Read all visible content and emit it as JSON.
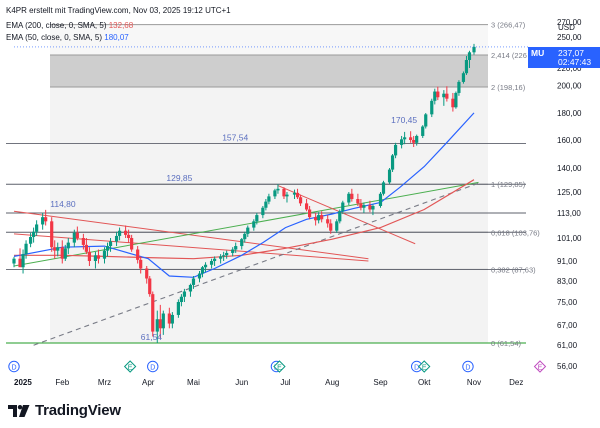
{
  "header": {
    "line1": "K4PR erstellt mit TradingView.com, Nov 03, 2025 19:12 UTC+1",
    "ema200_label": "EMA (200, close, 0, SMA, 5)",
    "ema200_value": "132,68",
    "ema50_label": "EMA (50, close, 0, SMA, 5)",
    "ema50_value": "180,07"
  },
  "price_tag": {
    "symbol": "MU",
    "price": "237,07",
    "countdown": "02:47:43"
  },
  "currency": "USD",
  "footer": {
    "logo_text": "TradingView"
  },
  "colors": {
    "candle_up": "#089981",
    "candle_down": "#f23645",
    "ema50": "#2962ff",
    "ema200": "#e25656",
    "accent": "#2962ff"
  },
  "chart_data": {
    "type": "candlestick",
    "ylim": [
      56,
      275
    ],
    "y_ticks": [
      "270,00",
      "250,00",
      "220,00",
      "200,00",
      "180,00",
      "160,00",
      "140,00",
      "125,00",
      "113,00",
      "101,00",
      "91,00",
      "83,00",
      "75,00",
      "67,00",
      "61,00",
      "56,00"
    ],
    "y_tick_values": [
      270,
      250,
      220,
      200,
      180,
      160,
      140,
      125,
      113,
      101,
      91,
      83,
      75,
      67,
      61,
      56
    ],
    "x_labels": [
      "2025",
      "Feb",
      "Mrz",
      "Apr",
      "Mai",
      "Jun",
      "Jul",
      "Aug",
      "Sep",
      "Okt",
      "Nov",
      "Dez"
    ],
    "x_label_dates": [
      "2025-01-02",
      "2025-02-03",
      "2025-03-03",
      "2025-04-01",
      "2025-05-01",
      "2025-06-02",
      "2025-07-01",
      "2025-08-01",
      "2025-09-02",
      "2025-10-01",
      "2025-11-03",
      "2025-12-01"
    ],
    "fib_levels": [
      {
        "label": "3 (266,47)",
        "value": 266.47
      },
      {
        "label": "2,414 (226",
        "value": 226.5
      },
      {
        "label": "2 (198,16)",
        "value": 198.16
      },
      {
        "label": "1 (129,85)",
        "value": 129.85
      },
      {
        "label": "0,618 (103,76)",
        "value": 103.76
      },
      {
        "label": "0,382 (87,63)",
        "value": 87.63
      },
      {
        "label": "0 (61,54)",
        "value": 61.54
      }
    ],
    "value_labels": [
      {
        "text": "157,54",
        "value": 157.54,
        "date": "2025-05-28"
      },
      {
        "text": "129,85",
        "value": 129.85,
        "date": "2025-04-21"
      },
      {
        "text": "114,80",
        "value": 114.8,
        "date": "2025-02-03"
      },
      {
        "text": "170,45",
        "value": 170.45,
        "date": "2025-09-17"
      },
      {
        "text": "61,54",
        "value": 61.54,
        "date": "2025-04-04"
      }
    ],
    "events": [
      {
        "label": "D",
        "kind": "dividend",
        "date": "2025-01-02"
      },
      {
        "label": "E",
        "kind": "earnings",
        "date": "2025-03-20"
      },
      {
        "label": "D",
        "kind": "dividend",
        "date": "2025-04-04"
      },
      {
        "label": "D",
        "kind": "dividend",
        "date": "2025-06-25"
      },
      {
        "label": "E",
        "kind": "earnings",
        "date": "2025-06-27"
      },
      {
        "label": "D",
        "kind": "dividend",
        "date": "2025-09-26"
      },
      {
        "label": "E",
        "kind": "earnings",
        "date": "2025-10-01"
      },
      {
        "label": "D",
        "kind": "dividend",
        "date": "2025-10-30"
      },
      {
        "label": "E",
        "kind": "earnings",
        "date": "2025-12-18"
      }
    ],
    "candles": [
      [
        "2025-01-02",
        90.0,
        92.8,
        88.5,
        92.0
      ],
      [
        "2025-01-06",
        92.0,
        96.5,
        89.0,
        88.5
      ],
      [
        "2025-01-08",
        88.5,
        96.0,
        86.0,
        94.0
      ],
      [
        "2025-01-10",
        94.0,
        100.0,
        92.0,
        98.5
      ],
      [
        "2025-01-13",
        98.5,
        103.5,
        97.0,
        101.5
      ],
      [
        "2025-01-15",
        101.5,
        106.0,
        99.0,
        104.0
      ],
      [
        "2025-01-17",
        104.0,
        109.5,
        102.0,
        107.5
      ],
      [
        "2025-01-21",
        107.5,
        113.0,
        105.0,
        111.0
      ],
      [
        "2025-01-23",
        111.0,
        114.8,
        107.0,
        109.0
      ],
      [
        "2025-01-27",
        109.0,
        111.0,
        95.0,
        97.0
      ],
      [
        "2025-01-29",
        97.0,
        100.0,
        92.0,
        95.5
      ],
      [
        "2025-01-31",
        95.5,
        99.0,
        93.0,
        97.0
      ],
      [
        "2025-02-03",
        97.0,
        100.0,
        90.0,
        92.0
      ],
      [
        "2025-02-05",
        92.0,
        98.0,
        91.0,
        96.5
      ],
      [
        "2025-02-07",
        96.5,
        101.0,
        94.0,
        99.0
      ],
      [
        "2025-02-11",
        99.0,
        105.0,
        97.0,
        103.5
      ],
      [
        "2025-02-13",
        103.5,
        106.5,
        100.0,
        101.0
      ],
      [
        "2025-02-17",
        101.0,
        103.0,
        96.0,
        98.0
      ],
      [
        "2025-02-19",
        98.0,
        101.0,
        94.0,
        95.0
      ],
      [
        "2025-02-21",
        95.0,
        97.0,
        89.0,
        91.0
      ],
      [
        "2025-02-25",
        91.0,
        95.0,
        88.0,
        93.5
      ],
      [
        "2025-02-27",
        93.5,
        96.0,
        90.0,
        92.0
      ],
      [
        "2025-03-03",
        92.0,
        97.0,
        90.0,
        95.5
      ],
      [
        "2025-03-05",
        95.5,
        99.0,
        93.0,
        97.5
      ],
      [
        "2025-03-07",
        97.5,
        101.0,
        95.0,
        99.5
      ],
      [
        "2025-03-11",
        99.5,
        104.0,
        97.5,
        102.0
      ],
      [
        "2025-03-13",
        102.0,
        106.0,
        100.0,
        104.5
      ],
      [
        "2025-03-17",
        104.5,
        107.0,
        101.0,
        102.5
      ],
      [
        "2025-03-19",
        102.5,
        105.0,
        99.0,
        101.0
      ],
      [
        "2025-03-21",
        101.0,
        102.5,
        95.0,
        96.0
      ],
      [
        "2025-03-25",
        96.0,
        97.5,
        90.0,
        91.5
      ],
      [
        "2025-03-27",
        91.5,
        93.0,
        86.0,
        88.0
      ],
      [
        "2025-03-31",
        88.0,
        89.0,
        82.0,
        84.0
      ],
      [
        "2025-04-02",
        84.0,
        85.0,
        77.0,
        78.0
      ],
      [
        "2025-04-04",
        78.0,
        79.0,
        63.5,
        65.0
      ],
      [
        "2025-04-07",
        65.0,
        72.0,
        61.54,
        69.0
      ],
      [
        "2025-04-09",
        69.0,
        74.0,
        63.0,
        66.0
      ],
      [
        "2025-04-11",
        66.0,
        72.0,
        64.0,
        71.0
      ],
      [
        "2025-04-15",
        71.0,
        73.0,
        66.0,
        67.5
      ],
      [
        "2025-04-17",
        67.5,
        71.5,
        66.0,
        70.5
      ],
      [
        "2025-04-21",
        70.5,
        76.0,
        69.5,
        75.0
      ],
      [
        "2025-04-23",
        75.0,
        78.0,
        73.5,
        77.0
      ],
      [
        "2025-04-25",
        77.0,
        80.0,
        75.0,
        79.0
      ],
      [
        "2025-04-29",
        79.0,
        82.0,
        77.0,
        81.5
      ],
      [
        "2025-05-01",
        81.5,
        85.0,
        80.0,
        84.0
      ],
      [
        "2025-05-05",
        84.0,
        87.0,
        82.5,
        86.0
      ],
      [
        "2025-05-07",
        86.0,
        89.0,
        84.5,
        88.5
      ],
      [
        "2025-05-09",
        88.5,
        90.5,
        86.5,
        89.5
      ],
      [
        "2025-05-13",
        89.5,
        92.0,
        88.0,
        91.0
      ],
      [
        "2025-05-15",
        91.0,
        93.0,
        89.0,
        92.0
      ],
      [
        "2025-05-19",
        92.0,
        94.0,
        90.0,
        93.0
      ],
      [
        "2025-05-21",
        93.0,
        95.0,
        91.0,
        93.5
      ],
      [
        "2025-05-23",
        93.5,
        95.5,
        92.0,
        94.5
      ],
      [
        "2025-05-27",
        94.5,
        97.0,
        93.0,
        96.0
      ],
      [
        "2025-05-29",
        96.0,
        99.0,
        94.5,
        97.5
      ],
      [
        "2025-06-02",
        97.5,
        101.0,
        96.0,
        100.5
      ],
      [
        "2025-06-04",
        100.5,
        104.0,
        99.0,
        103.0
      ],
      [
        "2025-06-06",
        103.0,
        107.0,
        101.5,
        106.0
      ],
      [
        "2025-06-10",
        106.0,
        110.0,
        104.5,
        109.0
      ],
      [
        "2025-06-12",
        109.0,
        113.0,
        107.5,
        112.0
      ],
      [
        "2025-06-16",
        112.0,
        117.0,
        110.5,
        116.0
      ],
      [
        "2025-06-18",
        116.0,
        121.0,
        114.5,
        119.5
      ],
      [
        "2025-06-20",
        119.5,
        124.0,
        118.0,
        122.5
      ],
      [
        "2025-06-24",
        122.5,
        127.0,
        121.0,
        126.0
      ],
      [
        "2025-06-26",
        126.0,
        129.85,
        124.0,
        127.0
      ],
      [
        "2025-06-30",
        127.0,
        128.0,
        121.0,
        122.5
      ],
      [
        "2025-07-02",
        122.5,
        125.0,
        119.0,
        123.5
      ],
      [
        "2025-07-07",
        123.5,
        126.5,
        121.0,
        124.5
      ],
      [
        "2025-07-09",
        124.5,
        127.0,
        121.0,
        122.0
      ],
      [
        "2025-07-11",
        122.0,
        123.5,
        117.0,
        118.5
      ],
      [
        "2025-07-15",
        118.5,
        121.0,
        114.0,
        115.0
      ],
      [
        "2025-07-17",
        115.0,
        117.0,
        110.0,
        111.0
      ],
      [
        "2025-07-21",
        111.0,
        113.0,
        107.0,
        109.5
      ],
      [
        "2025-07-23",
        109.5,
        113.5,
        108.0,
        112.0
      ],
      [
        "2025-07-25",
        112.0,
        114.0,
        108.5,
        110.0
      ],
      [
        "2025-07-29",
        110.0,
        112.0,
        106.0,
        108.0
      ],
      [
        "2025-07-31",
        108.0,
        110.0,
        103.0,
        104.5
      ],
      [
        "2025-08-04",
        104.5,
        110.0,
        103.5,
        109.0
      ],
      [
        "2025-08-06",
        109.0,
        115.0,
        108.0,
        114.0
      ],
      [
        "2025-08-08",
        114.0,
        120.0,
        112.5,
        119.0
      ],
      [
        "2025-08-12",
        119.0,
        125.0,
        117.5,
        124.0
      ],
      [
        "2025-08-14",
        124.0,
        127.0,
        119.5,
        121.0
      ],
      [
        "2025-08-18",
        121.0,
        124.0,
        117.0,
        118.5
      ],
      [
        "2025-08-20",
        118.5,
        121.0,
        114.5,
        116.0
      ],
      [
        "2025-08-22",
        116.0,
        119.0,
        113.0,
        117.5
      ],
      [
        "2025-08-26",
        117.5,
        120.0,
        113.5,
        115.0
      ],
      [
        "2025-08-28",
        115.0,
        118.0,
        112.0,
        117.0
      ],
      [
        "2025-09-02",
        117.0,
        125.0,
        116.0,
        124.0
      ],
      [
        "2025-09-04",
        124.0,
        132.0,
        123.0,
        131.0
      ],
      [
        "2025-09-08",
        131.0,
        140.0,
        130.0,
        139.0
      ],
      [
        "2025-09-10",
        139.0,
        150.0,
        137.5,
        149.0
      ],
      [
        "2025-09-12",
        149.0,
        158.0,
        147.0,
        156.5
      ],
      [
        "2025-09-16",
        156.5,
        163.0,
        154.0,
        160.5
      ],
      [
        "2025-09-18",
        160.5,
        166.0,
        157.0,
        162.0
      ],
      [
        "2025-09-22",
        162.0,
        166.5,
        158.0,
        160.0
      ],
      [
        "2025-09-24",
        160.0,
        163.0,
        155.0,
        158.0
      ],
      [
        "2025-09-26",
        158.0,
        164.0,
        156.0,
        163.0
      ],
      [
        "2025-09-30",
        163.0,
        171.0,
        161.5,
        170.0
      ],
      [
        "2025-10-02",
        170.0,
        180.0,
        168.5,
        179.0
      ],
      [
        "2025-10-06",
        179.0,
        190.0,
        177.0,
        188.5
      ],
      [
        "2025-10-08",
        188.5,
        197.0,
        186.0,
        195.0
      ],
      [
        "2025-10-10",
        195.0,
        198.5,
        189.0,
        191.0
      ],
      [
        "2025-10-14",
        191.0,
        196.0,
        185.0,
        193.5
      ],
      [
        "2025-10-16",
        193.5,
        199.0,
        188.0,
        190.0
      ],
      [
        "2025-10-20",
        190.0,
        194.0,
        181.0,
        184.0
      ],
      [
        "2025-10-22",
        184.0,
        195.0,
        183.0,
        194.0
      ],
      [
        "2025-10-24",
        194.0,
        206.0,
        192.0,
        204.0
      ],
      [
        "2025-10-27",
        204.0,
        216.0,
        202.0,
        214.0
      ],
      [
        "2025-10-29",
        214.0,
        226.0,
        212.0,
        224.0
      ],
      [
        "2025-10-31",
        224.0,
        232.0,
        220.0,
        230.0
      ],
      [
        "2025-11-03",
        230.0,
        241.0,
        227.0,
        237.07
      ]
    ],
    "ema50": [
      [
        "2025-01-02",
        93.0
      ],
      [
        "2025-02-03",
        97.0
      ],
      [
        "2025-03-03",
        97.5
      ],
      [
        "2025-04-01",
        92.0
      ],
      [
        "2025-04-15",
        85.0
      ],
      [
        "2025-05-01",
        84.5
      ],
      [
        "2025-05-15",
        88.0
      ],
      [
        "2025-06-02",
        93.5
      ],
      [
        "2025-06-16",
        99.0
      ],
      [
        "2025-07-01",
        106.0
      ],
      [
        "2025-07-15",
        110.0
      ],
      [
        "2025-08-01",
        112.5
      ],
      [
        "2025-08-15",
        115.5
      ],
      [
        "2025-09-02",
        119.0
      ],
      [
        "2025-09-15",
        128.0
      ],
      [
        "2025-10-01",
        141.0
      ],
      [
        "2025-10-15",
        157.0
      ],
      [
        "2025-11-03",
        180.07
      ]
    ],
    "ema200": [
      [
        "2025-01-02",
        93.5
      ],
      [
        "2025-02-03",
        93.5
      ],
      [
        "2025-03-03",
        93.0
      ],
      [
        "2025-04-01",
        92.5
      ],
      [
        "2025-05-01",
        92.0
      ],
      [
        "2025-06-02",
        93.5
      ],
      [
        "2025-07-01",
        96.5
      ],
      [
        "2025-08-01",
        100.5
      ],
      [
        "2025-09-02",
        106.0
      ],
      [
        "2025-10-01",
        115.0
      ],
      [
        "2025-11-03",
        132.68
      ]
    ],
    "trendlines": [
      {
        "name": "upper-falling",
        "color": "#e25656",
        "points": [
          [
            "2025-01-02",
            114.0
          ],
          [
            "2025-08-25",
            92.0
          ]
        ]
      },
      {
        "name": "mid-falling",
        "color": "#e25656",
        "points": [
          [
            "2025-01-02",
            103.0
          ],
          [
            "2025-08-25",
            91.0
          ]
        ]
      },
      {
        "name": "rising-support",
        "color": "#4caf50",
        "points": [
          [
            "2025-01-02",
            89.0
          ],
          [
            "2025-11-06",
            131.0
          ]
        ]
      },
      {
        "name": "channel-top",
        "color": "#e25656",
        "points": [
          [
            "2025-06-26",
            129.0
          ],
          [
            "2025-09-25",
            98.5
          ]
        ]
      },
      {
        "name": "diagonal-dashed",
        "color": "#787b86",
        "points": [
          [
            "2025-01-15",
            61.0
          ],
          [
            "2025-11-06",
            130.5
          ]
        ]
      }
    ]
  }
}
